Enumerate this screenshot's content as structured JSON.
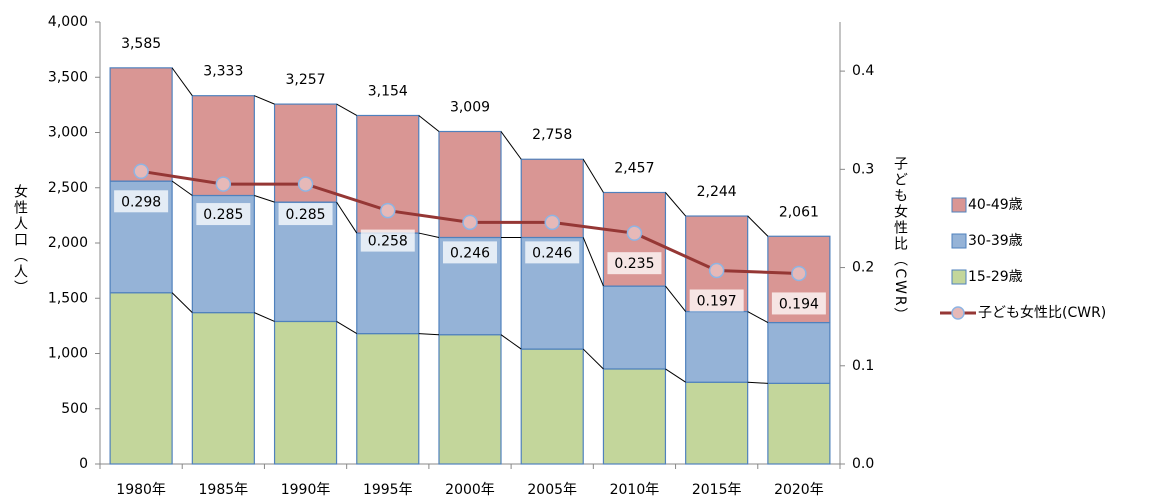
{
  "chart_data": {
    "type": "stacked-bar-line",
    "categories": [
      "1980年",
      "1985年",
      "1990年",
      "1995年",
      "2000年",
      "2005年",
      "2010年",
      "2015年",
      "2020年"
    ],
    "y_label": "女性人口（人）",
    "y2_label": "子ども女性比（CWR）",
    "ylim": [
      0,
      4000
    ],
    "yticks": [
      0,
      {
        "value": 500,
        "label": "500"
      },
      {
        "value": 1000,
        "label": "1,000"
      },
      {
        "value": 1500,
        "label": "1,500"
      },
      {
        "value": 2000,
        "label": "2,000"
      },
      {
        "value": 2500,
        "label": "2,500"
      },
      {
        "value": 3000,
        "label": "3,000"
      },
      {
        "value": 3500,
        "label": "3,500"
      },
      {
        "value": 4000,
        "label": "4,000"
      }
    ],
    "y2lim": [
      0,
      0.45
    ],
    "y2ticks": [
      {
        "value": 0,
        "label": "0.0"
      },
      0.1,
      0.2,
      0.3,
      0.4
    ],
    "series": [
      {
        "name": "15-29歳",
        "color": "#c3d69b",
        "values": [
          1550,
          1370,
          1290,
          1180,
          1170,
          1040,
          860,
          740,
          730
        ]
      },
      {
        "name": "30-39歳",
        "color": "#95b3d7",
        "values": [
          1010,
          1060,
          1080,
          910,
          880,
          1010,
          750,
          640,
          550
        ]
      },
      {
        "name": "40-49歳",
        "color": "#d99694",
        "values": [
          1025,
          903,
          887,
          1064,
          959,
          708,
          847,
          864,
          781
        ]
      },
      {
        "name": "子ども女性比(CWR)",
        "color": "#953735",
        "axis": "y2",
        "type": "line",
        "values": [
          0.298,
          0.285,
          0.285,
          0.258,
          0.246,
          0.246,
          0.235,
          0.197,
          0.194
        ]
      }
    ],
    "totals": {
      "values": [
        3585,
        3333,
        3257,
        3154,
        3009,
        2758,
        2457,
        2244,
        2061
      ],
      "value_labels": [
        "3,585",
        "3,333",
        "3,257",
        "3,154",
        "3,009",
        "2,758",
        "2,457",
        "2,244",
        "2,061"
      ]
    },
    "legend": "right"
  }
}
